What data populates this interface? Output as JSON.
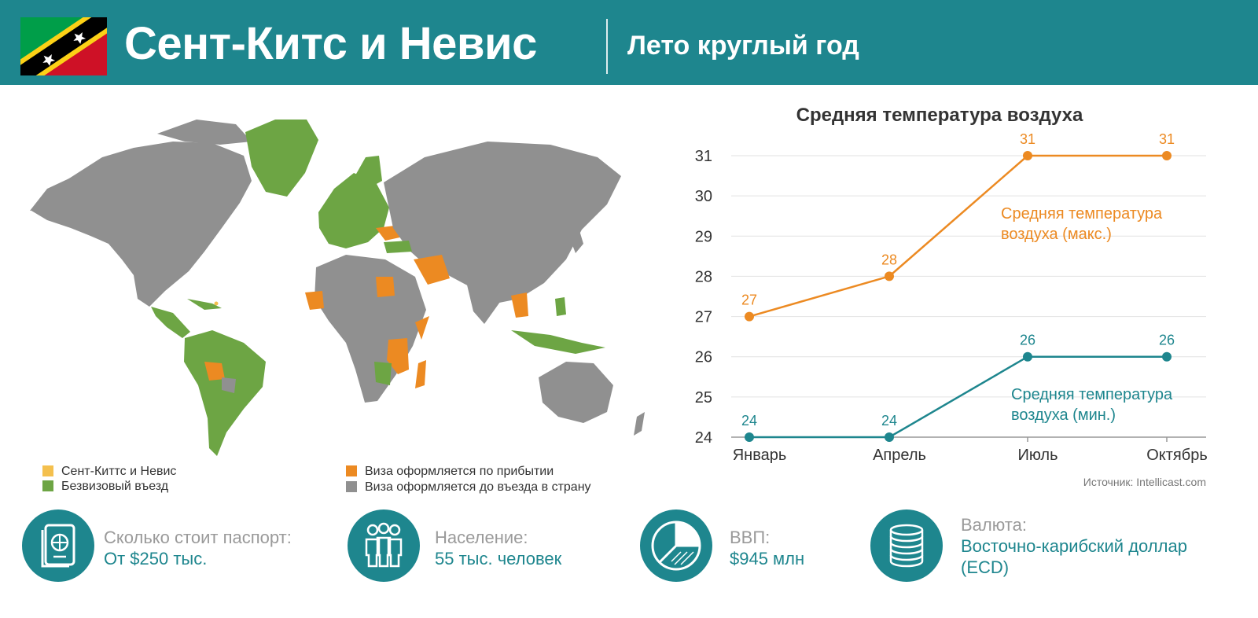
{
  "header": {
    "title": "Сент-Китс и Невис",
    "subtitle": "Лето круглый год"
  },
  "colors": {
    "header_bg": "#1e868e",
    "accent_teal": "#1e868e",
    "accent_orange": "#ec8a22",
    "map_own": "#f4c04e",
    "map_visa_free": "#6da544",
    "map_on_arrival": "#ec8a22",
    "map_visa_required": "#909090"
  },
  "map_legend": [
    {
      "label": "Сент-Киттс и Невис",
      "color": "#f4c04e"
    },
    {
      "label": "Безвизовый въезд",
      "color": "#6da544"
    },
    {
      "label": "Виза оформляется по прибытии",
      "color": "#ec8a22"
    },
    {
      "label": "Виза оформляется до въезда в страну",
      "color": "#909090"
    }
  ],
  "chart_data": {
    "type": "line",
    "title": "Средняя температура воздуха",
    "categories": [
      "Январь",
      "Апрель",
      "Июль",
      "Октябрь"
    ],
    "ylim": [
      24,
      31
    ],
    "yticks": [
      24,
      25,
      26,
      27,
      28,
      29,
      30,
      31
    ],
    "grid": true,
    "series": [
      {
        "name": "Средняя температура воздуха (макс.)",
        "name_lines": [
          "Средняя температура",
          "воздуха (макс.)"
        ],
        "values": [
          27,
          28,
          31,
          31
        ],
        "labels": [
          "27",
          "28",
          "31",
          "31"
        ],
        "color": "#ec8a22"
      },
      {
        "name": "Средняя температура воздуха (мин.)",
        "name_lines": [
          "Средняя температура",
          "воздуха (мин.)"
        ],
        "values": [
          24,
          24,
          26,
          26
        ],
        "labels": [
          "24",
          "24",
          "26",
          "26"
        ],
        "color": "#1e868e"
      }
    ]
  },
  "source": "Источник: Intellicast.com",
  "stats": [
    {
      "icon": "passport-icon",
      "label": "Сколько стоит паспорт:",
      "value_lines": [
        "От $250 тыс."
      ]
    },
    {
      "icon": "people-icon",
      "label": "Население:",
      "value_lines": [
        "55 тыс.  человек"
      ]
    },
    {
      "icon": "pie-chart-icon",
      "label": "ВВП:",
      "value_lines": [
        "$945  млн"
      ]
    },
    {
      "icon": "coins-icon",
      "label": "Валюта:",
      "value_lines": [
        "Восточно-карибский доллар",
        "(ECD)"
      ]
    }
  ]
}
